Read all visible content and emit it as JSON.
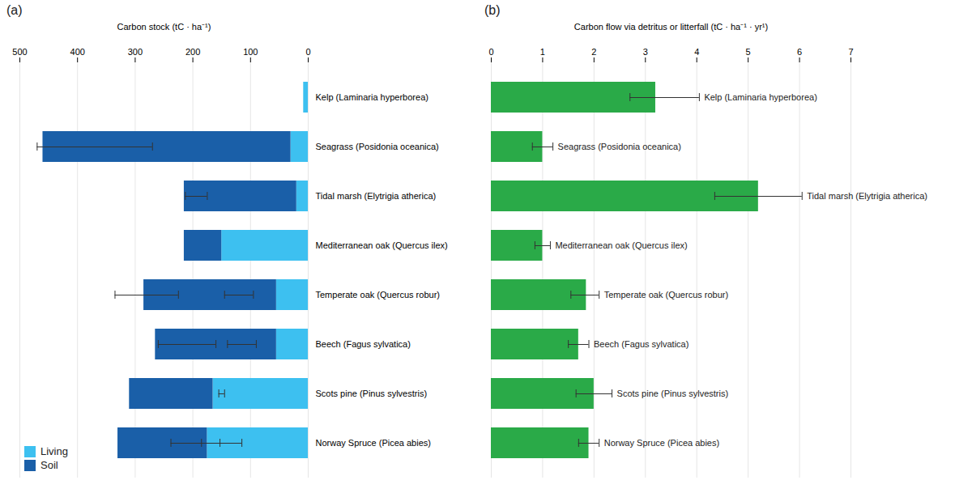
{
  "chart_data": [
    {
      "type": "bar",
      "title": "(a)",
      "orientation": "horizontal",
      "stacked": true,
      "categories": [
        "Kelp (Laminaria hyperborea)",
        "Seagrass (Posidonia oceanica)",
        "Tidal marsh (Elytrigia atherica)",
        "Mediterranean oak (Quercus ilex)",
        "Temperate oak (Quercus robur)",
        "Beech (Fagus sylvatica)",
        "Scots pine (Pinus sylvestris)",
        "Norway Spruce (Picea abies)"
      ],
      "series": [
        {
          "name": "Living",
          "color": "#3dc0f0",
          "values": [
            8,
            30,
            20,
            150,
            55,
            55,
            165,
            175
          ]
        },
        {
          "name": "Soil",
          "color": "#1a5fa8",
          "values": [
            0,
            430,
            195,
            65,
            230,
            210,
            145,
            155
          ]
        }
      ],
      "xlabel": "Carbon stock (tC · ha⁻¹)",
      "xlim": [
        500,
        0
      ],
      "xticks": [
        500,
        400,
        300,
        200,
        100,
        0
      ],
      "grid": true,
      "legend": "lower left",
      "error_bars": [
        {
          "center": [
            null,
            370,
            193,
            null,
            280,
            210,
            150,
            193
          ],
          "minus": [
            null,
            100,
            18,
            null,
            55,
            50,
            5,
            40
          ],
          "plus": [
            null,
            100,
            20,
            null,
            55,
            50,
            5,
            45
          ]
        },
        {
          "center": [
            null,
            null,
            null,
            null,
            120,
            115,
            null,
            150
          ],
          "minus": [
            null,
            null,
            null,
            null,
            25,
            25,
            null,
            35
          ],
          "plus": [
            null,
            null,
            null,
            null,
            25,
            25,
            null,
            35
          ]
        }
      ]
    },
    {
      "type": "bar",
      "title": "(b)",
      "orientation": "horizontal",
      "categories": [
        "Kelp (Laminaria hyperborea)",
        "Seagrass (Posidonia oceanica)",
        "Tidal marsh (Elytrigia atherica)",
        "Mediterranean oak (Quercus ilex)",
        "Temperate oak (Quercus robur)",
        "Beech (Fagus sylvatica)",
        "Scots pine (Pinus sylvestris)",
        "Norway Spruce (Picea abies)"
      ],
      "values": [
        3.2,
        1.0,
        5.2,
        1.0,
        1.85,
        1.7,
        2.0,
        1.9
      ],
      "color": "#2aaa48",
      "error_minus": [
        0.5,
        0.2,
        0.85,
        0.15,
        0.3,
        0.2,
        0.35,
        0.2
      ],
      "error_plus": [
        0.85,
        0.2,
        0.85,
        0.15,
        0.25,
        0.2,
        0.35,
        0.2
      ],
      "xlabel": "Carbon flow via detritus or litterfall (tC · ha⁻¹ · yr¹)",
      "xlim": [
        0,
        7
      ],
      "xticks": [
        0,
        1,
        2,
        3,
        4,
        5,
        6,
        7
      ],
      "grid": true
    }
  ]
}
